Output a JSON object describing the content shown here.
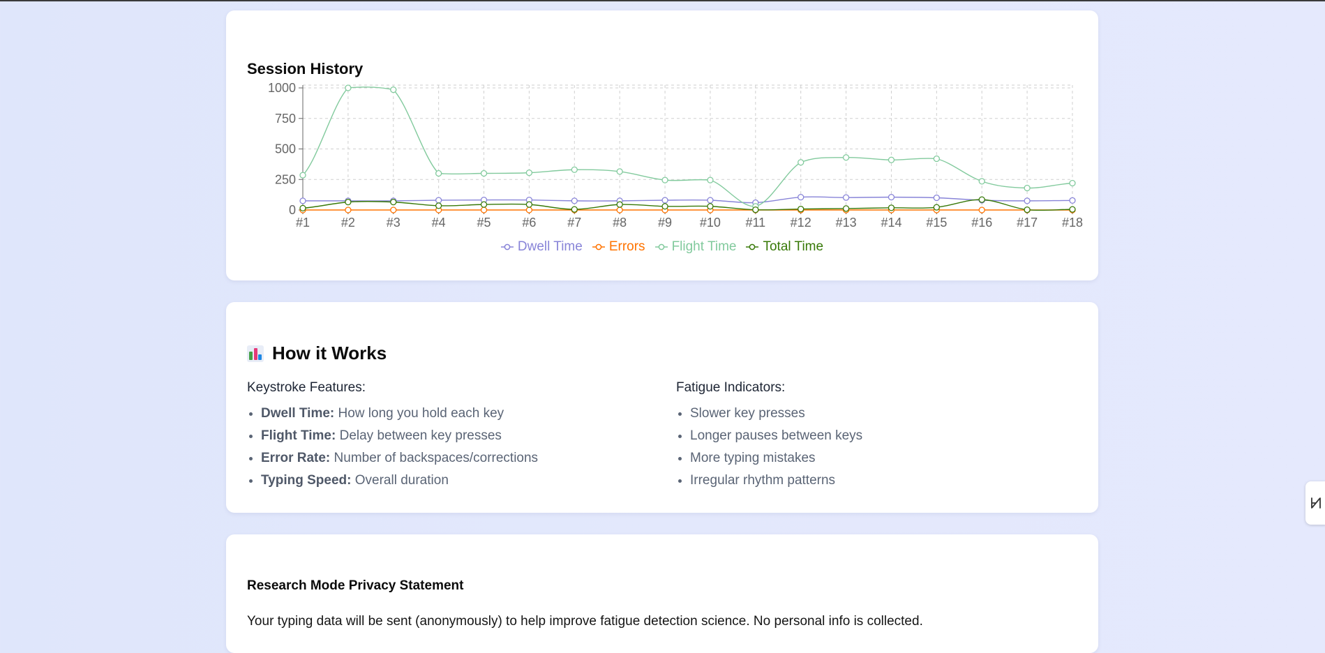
{
  "history_card": {
    "title": "Session History"
  },
  "chart_data": {
    "type": "line",
    "title": "Session History",
    "categories": [
      "#1",
      "#2",
      "#3",
      "#4",
      "#5",
      "#6",
      "#7",
      "#8",
      "#9",
      "#10",
      "#11",
      "#12",
      "#13",
      "#14",
      "#15",
      "#16",
      "#17",
      "#18"
    ],
    "y_ticks": [
      "0",
      "250",
      "500",
      "750",
      "1000"
    ],
    "ylim": [
      0,
      1000
    ],
    "grid": true,
    "legend": "bottom",
    "series": [
      {
        "name": "Dwell Time",
        "color": "#8884d8",
        "values": [
          75,
          75,
          75,
          80,
          82,
          82,
          75,
          75,
          80,
          80,
          60,
          105,
          102,
          105,
          100,
          80,
          75,
          78
        ]
      },
      {
        "name": "Errors",
        "color": "#ff7300",
        "values": [
          0,
          0,
          0,
          0,
          0,
          0,
          0,
          0,
          0,
          0,
          0,
          0,
          0,
          0,
          0,
          0,
          0,
          0
        ]
      },
      {
        "name": "Flight Time",
        "color": "#82ca9d",
        "values": [
          285,
          1000,
          985,
          300,
          300,
          305,
          330,
          315,
          245,
          245,
          30,
          390,
          430,
          410,
          420,
          235,
          180,
          220
        ]
      },
      {
        "name": "Total Time",
        "color": "#387908",
        "values": [
          15,
          65,
          65,
          35,
          45,
          45,
          5,
          45,
          30,
          30,
          2,
          8,
          12,
          18,
          22,
          85,
          2,
          5
        ]
      }
    ]
  },
  "how_card": {
    "title": "How it Works",
    "icon": "bar-chart-icon",
    "left_heading": "Keystroke Features:",
    "features": [
      {
        "term": "Dwell Time:",
        "desc": " How long you hold each key"
      },
      {
        "term": "Flight Time:",
        "desc": " Delay between key presses"
      },
      {
        "term": "Error Rate:",
        "desc": " Number of backspaces/corrections"
      },
      {
        "term": "Typing Speed:",
        "desc": " Overall duration"
      }
    ],
    "right_heading": "Fatigue Indicators:",
    "indicators": [
      "Slower key presses",
      "Longer pauses between keys",
      "More typing mistakes",
      "Irregular rhythm patterns"
    ]
  },
  "privacy_card": {
    "title": "Research Mode Privacy Statement",
    "text": "Your typing data will be sent (anonymously) to help improve fatigue detection science. No personal info is collected."
  },
  "side_tab": {
    "icon": "translate-toggle-icon"
  }
}
